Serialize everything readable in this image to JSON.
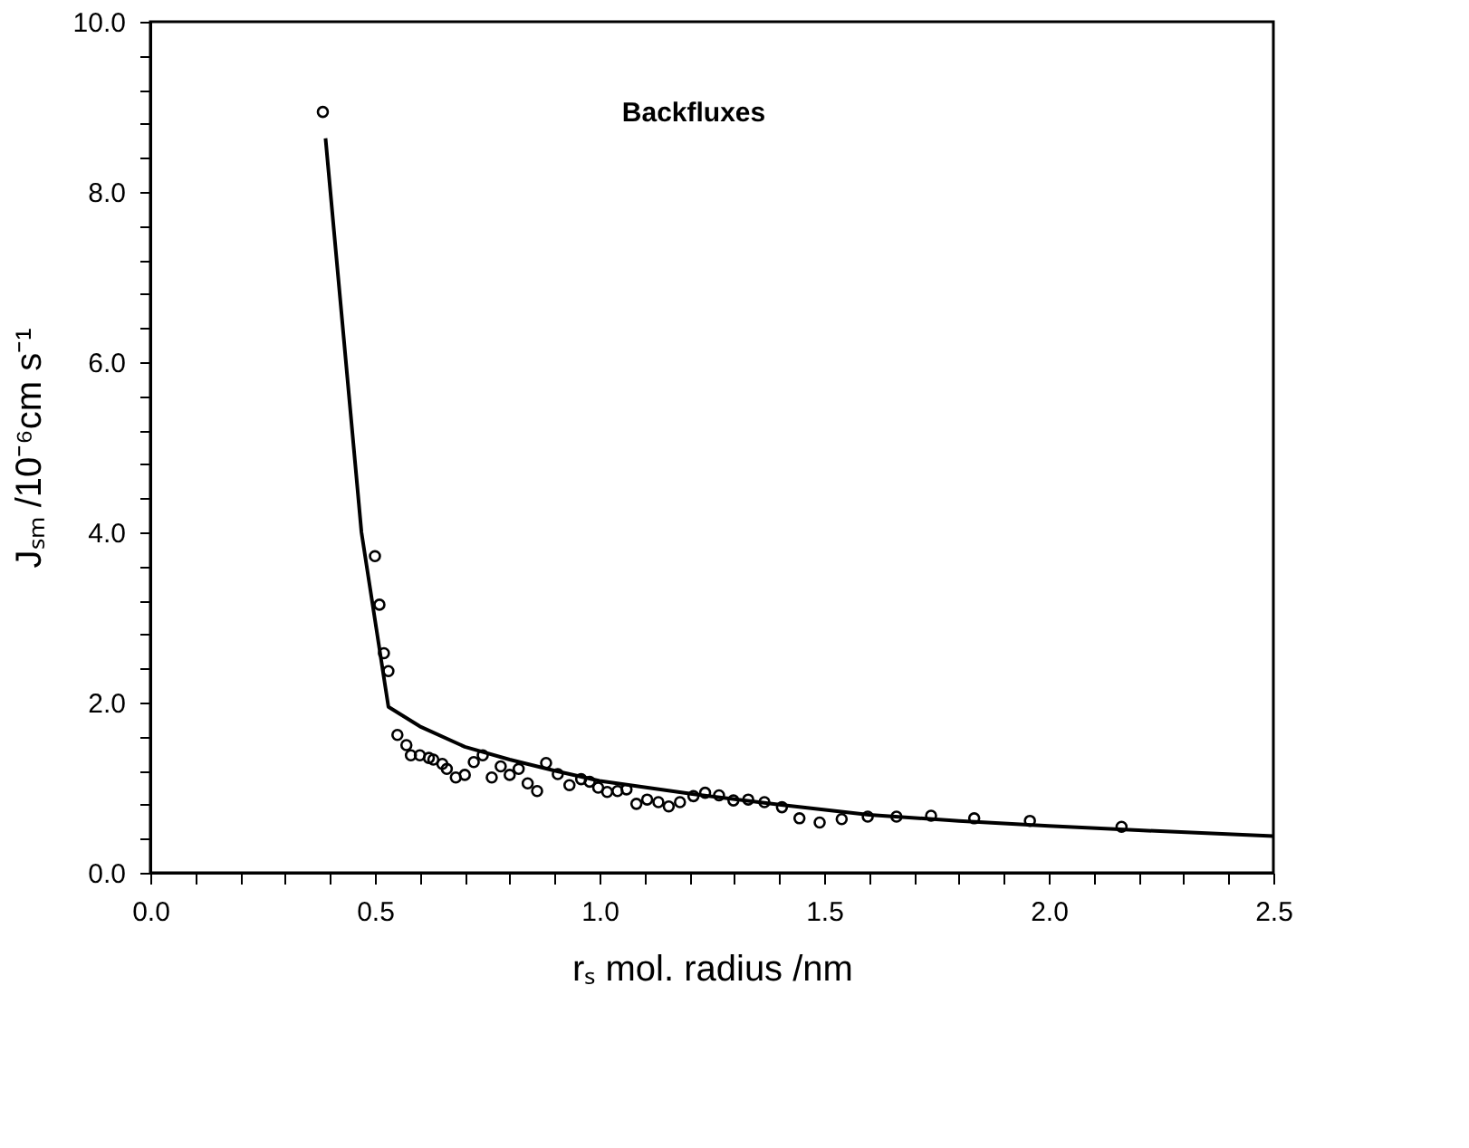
{
  "chart_data": {
    "type": "scatter",
    "xlabel": "rₛ  mol. radius /nm",
    "ylabel": "Jₛₘ  /10⁻⁶cm s⁻¹",
    "annotations": [
      "Backfluxes"
    ],
    "xlim": [
      0,
      2.5
    ],
    "ylim": [
      0,
      10
    ],
    "grid": false,
    "legend": false,
    "xticks": [
      {
        "value": 0,
        "label": "0.0"
      },
      {
        "value": 0.1,
        "label": null
      },
      {
        "value": 0.2,
        "label": null
      },
      {
        "value": 0.3,
        "label": null
      },
      {
        "value": 0.4,
        "label": null
      },
      {
        "value": 0.5,
        "label": "0.5"
      },
      {
        "value": 0.6,
        "label": null
      },
      {
        "value": 0.7,
        "label": null
      },
      {
        "value": 0.8,
        "label": null
      },
      {
        "value": 0.9,
        "label": null
      },
      {
        "value": 1,
        "label": "1.0"
      },
      {
        "value": 1.1,
        "label": null
      },
      {
        "value": 1.2,
        "label": null
      },
      {
        "value": 1.3,
        "label": null
      },
      {
        "value": 1.4,
        "label": null
      },
      {
        "value": 1.5,
        "label": "1.5"
      },
      {
        "value": 1.6,
        "label": null
      },
      {
        "value": 1.7,
        "label": null
      },
      {
        "value": 1.8,
        "label": null
      },
      {
        "value": 1.9,
        "label": null
      },
      {
        "value": 2,
        "label": "2.0"
      },
      {
        "value": 2.1,
        "label": null
      },
      {
        "value": 2.2,
        "label": null
      },
      {
        "value": 2.3,
        "label": null
      },
      {
        "value": 2.4,
        "label": null
      },
      {
        "value": 2.5,
        "label": "2.5"
      }
    ],
    "yticks": [
      {
        "value": 0,
        "label": "0.0"
      },
      {
        "value": 0.4,
        "label": null
      },
      {
        "value": 0.8,
        "label": null
      },
      {
        "value": 1.2,
        "label": null
      },
      {
        "value": 1.6,
        "label": null
      },
      {
        "value": 2,
        "label": "2.0"
      },
      {
        "value": 2.4,
        "label": null
      },
      {
        "value": 2.8,
        "label": null
      },
      {
        "value": 3.2,
        "label": null
      },
      {
        "value": 3.6,
        "label": null
      },
      {
        "value": 4,
        "label": "4.0"
      },
      {
        "value": 4.4,
        "label": null
      },
      {
        "value": 4.8,
        "label": null
      },
      {
        "value": 5.2,
        "label": null
      },
      {
        "value": 5.6,
        "label": null
      },
      {
        "value": 6,
        "label": "6.0"
      },
      {
        "value": 6.4,
        "label": null
      },
      {
        "value": 6.8,
        "label": null
      },
      {
        "value": 7.2,
        "label": null
      },
      {
        "value": 7.6,
        "label": null
      },
      {
        "value": 8,
        "label": "8.0"
      },
      {
        "value": 8.4,
        "label": null
      },
      {
        "value": 8.8,
        "label": null
      },
      {
        "value": 9.2,
        "label": null
      },
      {
        "value": 9.6,
        "label": null
      },
      {
        "value": 10,
        "label": "10.0"
      }
    ],
    "series": [
      {
        "type": "scatter",
        "marker": "circle",
        "color": "#000000",
        "x": [
          0.384,
          0.5,
          0.51,
          0.52,
          0.53,
          0.55,
          0.57,
          0.58,
          0.6,
          0.62,
          0.63,
          0.65,
          0.66,
          0.68,
          0.7,
          0.72,
          0.74,
          0.76,
          0.78,
          0.8,
          0.82,
          0.84,
          0.861,
          0.881,
          0.907,
          0.933,
          0.959,
          0.978,
          0.997,
          1.017,
          1.04,
          1.06,
          1.082,
          1.106,
          1.131,
          1.154,
          1.179,
          1.209,
          1.235,
          1.266,
          1.298,
          1.331,
          1.367,
          1.406,
          1.445,
          1.49,
          1.539,
          1.597,
          1.661,
          1.738,
          1.834,
          1.958,
          2.162
        ],
        "values": [
          8.94,
          3.72,
          3.15,
          2.58,
          2.37,
          1.62,
          1.5,
          1.38,
          1.38,
          1.35,
          1.33,
          1.28,
          1.22,
          1.12,
          1.15,
          1.3,
          1.38,
          1.12,
          1.25,
          1.15,
          1.22,
          1.05,
          0.96,
          1.29,
          1.16,
          1.03,
          1.1,
          1.07,
          1.0,
          0.95,
          0.96,
          0.98,
          0.81,
          0.86,
          0.83,
          0.78,
          0.83,
          0.9,
          0.94,
          0.91,
          0.85,
          0.86,
          0.83,
          0.77,
          0.64,
          0.59,
          0.63,
          0.66,
          0.66,
          0.67,
          0.64,
          0.61,
          0.54
        ]
      },
      {
        "type": "line",
        "line_style": "solid",
        "marker": "none",
        "color": "#000000",
        "x": [
          0.39,
          0.47,
          0.53,
          0.6,
          0.7,
          0.8,
          0.9,
          1.0,
          1.2,
          1.4,
          1.6,
          1.8,
          2.0,
          2.2,
          2.5
        ],
        "values": [
          8.63,
          4.0,
          1.95,
          1.72,
          1.48,
          1.33,
          1.2,
          1.08,
          0.93,
          0.8,
          0.68,
          0.61,
          0.55,
          0.5,
          0.43
        ]
      }
    ]
  }
}
